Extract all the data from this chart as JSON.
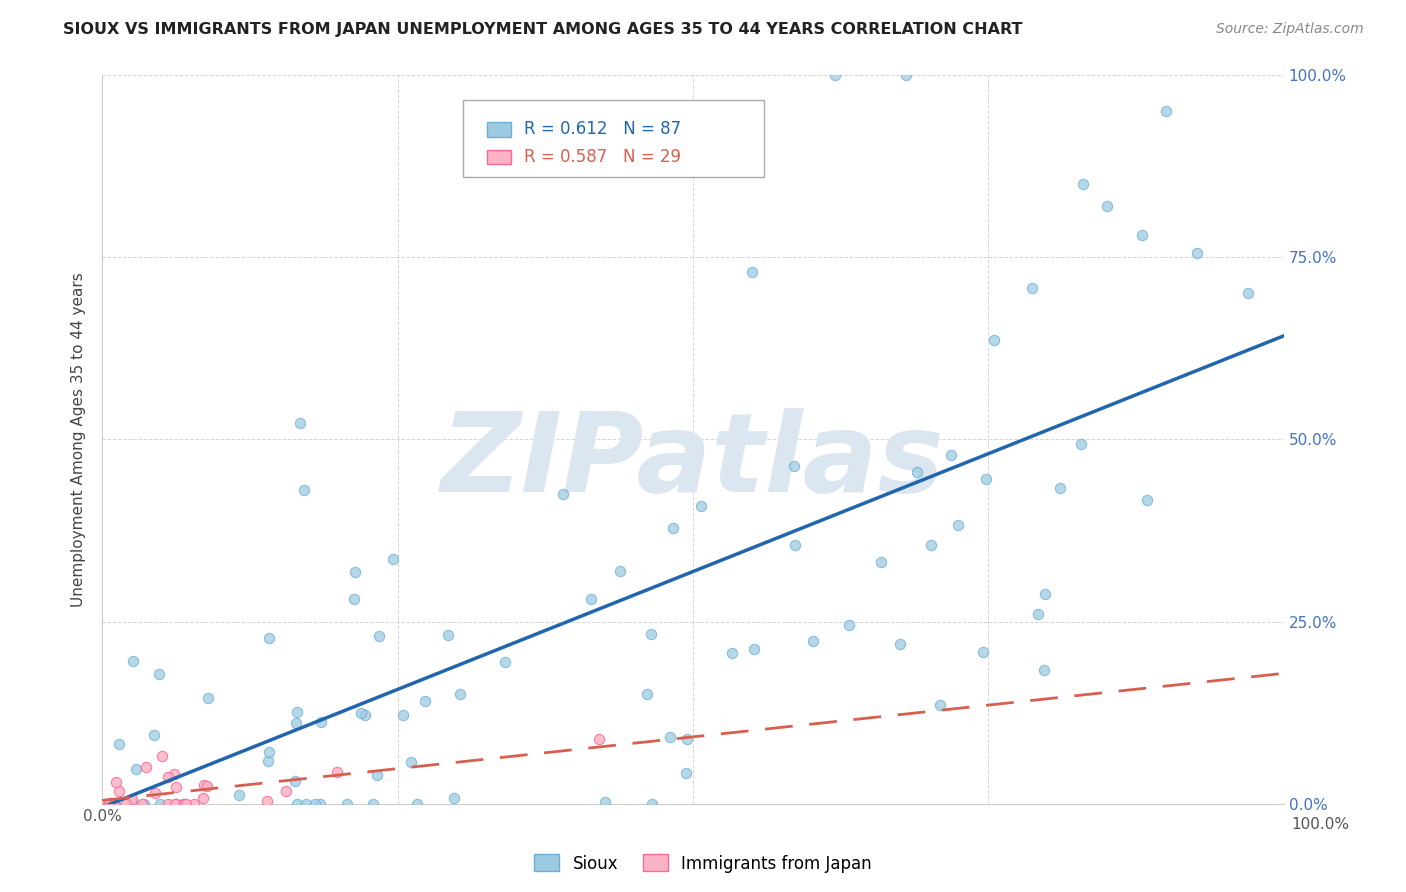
{
  "title": "SIOUX VS IMMIGRANTS FROM JAPAN UNEMPLOYMENT AMONG AGES 35 TO 44 YEARS CORRELATION CHART",
  "source": "Source: ZipAtlas.com",
  "ylabel": "Unemployment Among Ages 35 to 44 years",
  "xlim": [
    0,
    1
  ],
  "ylim": [
    0,
    1
  ],
  "xticks": [
    0.0,
    0.25,
    0.5,
    0.75,
    1.0
  ],
  "yticks": [
    0.0,
    0.25,
    0.5,
    0.75,
    1.0
  ],
  "xticklabels_left": [
    "0.0%",
    "",
    "",
    "",
    ""
  ],
  "xticklabels_right": [
    "",
    "",
    "",
    "",
    "100.0%"
  ],
  "yticklabels_left": [
    "",
    "",
    "",
    "",
    ""
  ],
  "yticklabels_right": [
    "0.0%",
    "25.0%",
    "50.0%",
    "75.0%",
    "100.0%"
  ],
  "sioux_color": "#9ecae1",
  "sioux_edge_color": "#6baed6",
  "japan_color": "#fbb4c3",
  "japan_edge_color": "#f768a1",
  "sioux_line_color": "#2166ac",
  "japan_line_color": "#d6604d",
  "sioux_R": 0.612,
  "sioux_N": 87,
  "japan_R": 0.587,
  "japan_N": 29,
  "watermark": "ZIPatlas",
  "watermark_color": "#dce6f0",
  "background_color": "#ffffff",
  "grid_color": "#cccccc",
  "sioux_line_intercept": 0.0,
  "sioux_line_slope": 0.55,
  "japan_line_intercept": 0.0,
  "japan_line_slope": 0.18
}
